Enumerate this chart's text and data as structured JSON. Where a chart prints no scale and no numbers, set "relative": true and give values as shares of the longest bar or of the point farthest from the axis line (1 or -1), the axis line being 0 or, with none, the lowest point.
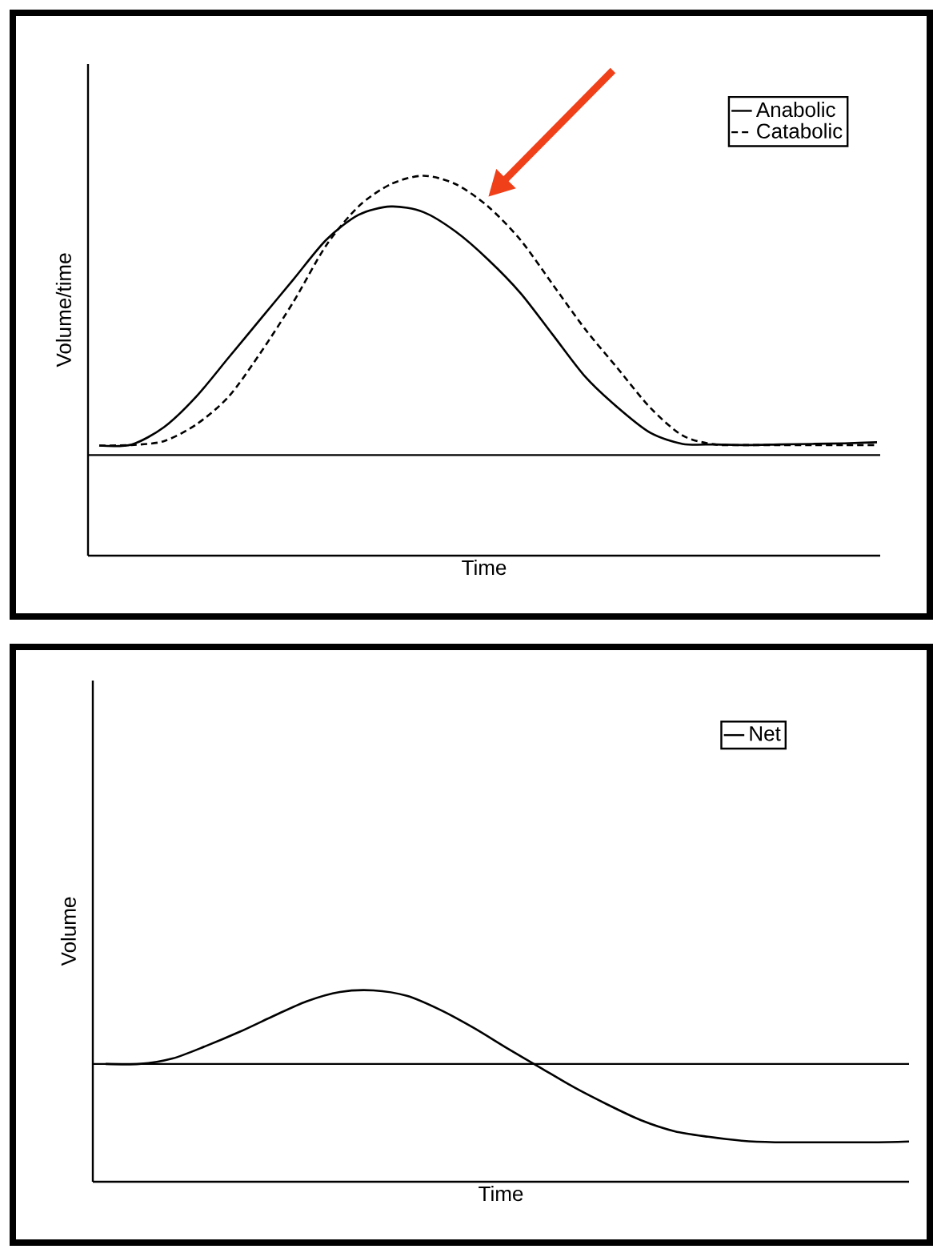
{
  "chart_data": [
    {
      "type": "line",
      "relative": true,
      "xlabel": "Time",
      "ylabel": "Volume/time",
      "legend": "top right",
      "categories": [
        null,
        null,
        null,
        null,
        null,
        null,
        null,
        null,
        null,
        null,
        null,
        null,
        null,
        null,
        null,
        null,
        null,
        null,
        null,
        null,
        null,
        null,
        null,
        null,
        null
      ],
      "series": [
        {
          "name": "Anabolic",
          "color": "#000000",
          "line_style": "solid",
          "values": [
            0.034,
            0.038,
            0.1,
            0.21,
            0.35,
            0.49,
            0.63,
            0.77,
            0.86,
            0.89,
            0.87,
            0.8,
            0.7,
            0.58,
            0.43,
            0.28,
            0.17,
            0.08,
            0.04,
            0.038,
            0.036,
            0.038,
            0.04,
            0.042,
            0.046
          ]
        },
        {
          "name": "Catabolic",
          "color": "#000000",
          "line_style": "dashed",
          "values": [
            0.034,
            0.036,
            0.05,
            0.11,
            0.21,
            0.37,
            0.55,
            0.75,
            0.89,
            0.97,
            1.0,
            0.97,
            0.89,
            0.77,
            0.61,
            0.45,
            0.31,
            0.17,
            0.07,
            0.038,
            0.036,
            0.036,
            0.036,
            0.036,
            0.036
          ]
        }
      ]
    },
    {
      "type": "line",
      "relative": true,
      "xlabel": "Time",
      "ylabel": "Volume",
      "legend": "top right",
      "categories": [
        null,
        null,
        null,
        null,
        null,
        null,
        null,
        null,
        null,
        null,
        null,
        null,
        null,
        null,
        null,
        null,
        null,
        null,
        null,
        null,
        null,
        null,
        null,
        null,
        null
      ],
      "series": [
        {
          "name": "Net",
          "color": "#000000",
          "line_style": "solid",
          "values": [
            0,
            0,
            0.07,
            0.23,
            0.41,
            0.61,
            0.8,
            0.92,
            0.94,
            0.87,
            0.69,
            0.46,
            0.2,
            -0.05,
            -0.3,
            -0.52,
            -0.72,
            -0.86,
            -0.93,
            -0.98,
            -1.0,
            -1.0,
            -1.0,
            -1.0,
            -0.99
          ]
        }
      ]
    }
  ]
}
